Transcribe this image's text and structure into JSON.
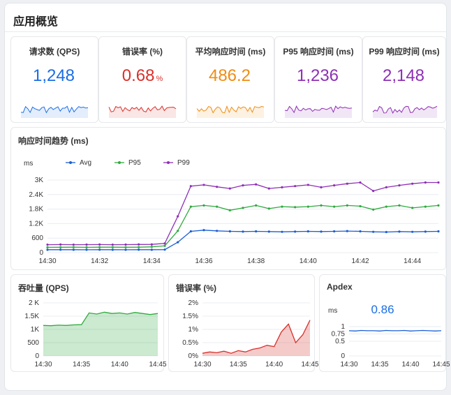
{
  "page": {
    "title": "应用概览"
  },
  "kpis": [
    {
      "label": "请求数 (QPS)",
      "value": "1,248",
      "unit": "",
      "color": "#1a6ee6"
    },
    {
      "label": "错误率 (%)",
      "value": "0.68",
      "unit": "%",
      "color": "#d9302b"
    },
    {
      "label": "平均响应时间 (ms)",
      "value": "486.2",
      "unit": "",
      "color": "#f08c12"
    },
    {
      "label": "P95 响应时间 (ms)",
      "value": "1,236",
      "unit": "",
      "color": "#8e2fb5"
    },
    {
      "label": "P99 响应时间 (ms)",
      "value": "2,148",
      "unit": "",
      "color": "#8e2fb5"
    }
  ],
  "response_trend": {
    "title": "响应时间趋势 (ms)",
    "y_unit": "ms"
  },
  "throughput": {
    "title": "吞吐量 (QPS)"
  },
  "error_rate": {
    "title": "错误率 (%)"
  },
  "apdex": {
    "title": "Apdex",
    "y_unit": "ms",
    "value": "0.86"
  },
  "chart_data": [
    {
      "type": "line",
      "title": "响应时间趋势 (ms)",
      "ylabel": "ms",
      "x": [
        "14:30",
        "14:30:30",
        "14:31",
        "14:31:30",
        "14:32",
        "14:32:30",
        "14:33",
        "14:33:30",
        "14:34",
        "14:34:30",
        "14:35",
        "14:35:30",
        "14:36",
        "14:36:30",
        "14:37",
        "14:37:30",
        "14:38",
        "14:38:30",
        "14:39",
        "14:39:30",
        "14:40",
        "14:40:30",
        "14:41",
        "14:41:30",
        "14:42",
        "14:42:30",
        "14:43",
        "14:43:30",
        "14:44",
        "14:44:30",
        "14:45"
      ],
      "xticks": [
        "14:30",
        "14:32",
        "14:34",
        "14:36",
        "14:38",
        "14:40",
        "14:42",
        "14:44"
      ],
      "yticks": [
        "0",
        "600",
        "1.2K",
        "1.8K",
        "2.4K",
        "3K"
      ],
      "ylim": [
        0,
        3000
      ],
      "legend": "top",
      "series": [
        {
          "name": "Avg",
          "color": "#1a5fd6",
          "values": [
            120,
            122,
            120,
            118,
            121,
            120,
            119,
            122,
            120,
            125,
            430,
            880,
            930,
            900,
            880,
            870,
            880,
            870,
            860,
            870,
            880,
            870,
            880,
            890,
            880,
            860,
            850,
            870,
            860,
            870,
            880
          ]
        },
        {
          "name": "P95",
          "color": "#2eaa3e",
          "values": [
            220,
            222,
            225,
            220,
            224,
            225,
            222,
            226,
            240,
            280,
            900,
            1900,
            1950,
            1900,
            1750,
            1850,
            1950,
            1820,
            1900,
            1880,
            1900,
            1950,
            1900,
            1950,
            1920,
            1780,
            1900,
            1950,
            1850,
            1900,
            1950
          ]
        },
        {
          "name": "P99",
          "color": "#8e2fb5",
          "values": [
            330,
            335,
            330,
            332,
            335,
            330,
            333,
            338,
            340,
            380,
            1500,
            2750,
            2800,
            2720,
            2650,
            2780,
            2820,
            2650,
            2700,
            2750,
            2800,
            2700,
            2780,
            2850,
            2900,
            2550,
            2700,
            2780,
            2850,
            2900,
            2900
          ]
        }
      ]
    },
    {
      "type": "area",
      "title": "吞吐量 (QPS)",
      "x": [
        "14:30",
        "14:31",
        "14:32",
        "14:33",
        "14:34",
        "14:35",
        "14:36",
        "14:37",
        "14:38",
        "14:39",
        "14:40",
        "14:41",
        "14:42",
        "14:43",
        "14:44",
        "14:45"
      ],
      "xticks": [
        "14:30",
        "14:35",
        "14:40",
        "14:45"
      ],
      "yticks": [
        "0",
        "500",
        "1K",
        "1.5K",
        "2 K"
      ],
      "ylim": [
        0,
        2000
      ],
      "series": [
        {
          "name": "",
          "color": "#2eaa3e",
          "values": [
            1150,
            1140,
            1160,
            1150,
            1170,
            1180,
            1620,
            1580,
            1650,
            1600,
            1620,
            1580,
            1640,
            1600,
            1560,
            1600
          ]
        }
      ]
    },
    {
      "type": "area",
      "title": "错误率 (%)",
      "x": [
        "14:30",
        "14:31",
        "14:32",
        "14:33",
        "14:34",
        "14:35",
        "14:36",
        "14:37",
        "14:38",
        "14:39",
        "14:40",
        "14:41",
        "14:42",
        "14:43",
        "14:44",
        "14:45"
      ],
      "xticks": [
        "14:30",
        "14:35",
        "14:40",
        "14:45"
      ],
      "yticks": [
        "0%",
        "0.5%",
        "1%",
        "1.5%",
        "2%"
      ],
      "ylim": [
        0,
        2
      ],
      "series": [
        {
          "name": "",
          "color": "#d9302b",
          "values": [
            0.1,
            0.15,
            0.12,
            0.18,
            0.1,
            0.2,
            0.15,
            0.25,
            0.3,
            0.4,
            0.35,
            0.9,
            1.2,
            0.5,
            0.8,
            1.35
          ]
        }
      ]
    },
    {
      "type": "line",
      "title": "Apdex",
      "x": [
        "14:30",
        "14:31",
        "14:32",
        "14:33",
        "14:34",
        "14:35",
        "14:36",
        "14:37",
        "14:38",
        "14:39",
        "14:40",
        "14:41",
        "14:42",
        "14:43",
        "14:44",
        "14:45"
      ],
      "xticks": [
        "14:30",
        "14:35",
        "14:40",
        "14:45"
      ],
      "yticks": [
        "0",
        "0.5",
        "0.75",
        "1"
      ],
      "ylim": [
        0,
        1
      ],
      "series": [
        {
          "name": "",
          "color": "#1a5fd6",
          "values": [
            0.86,
            0.85,
            0.87,
            0.86,
            0.86,
            0.85,
            0.87,
            0.86,
            0.86,
            0.87,
            0.85,
            0.86,
            0.87,
            0.86,
            0.85,
            0.86
          ]
        }
      ]
    }
  ]
}
